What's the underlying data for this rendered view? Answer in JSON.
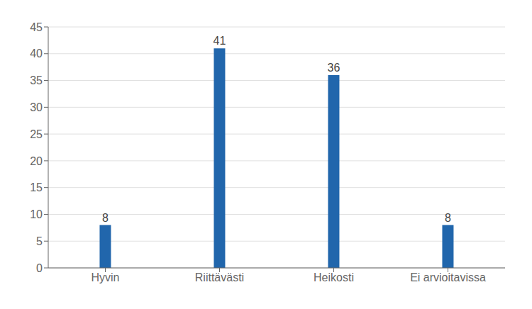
{
  "chart_data": {
    "type": "bar",
    "categories": [
      "Hyvin",
      "Riittävästi",
      "Heikosti",
      "Ei arvioitavissa"
    ],
    "values": [
      8,
      41,
      36,
      8
    ],
    "color": "#2166ac",
    "ylim": [
      0,
      45
    ],
    "yticks": [
      0,
      5,
      10,
      15,
      20,
      25,
      30,
      35,
      40,
      45
    ],
    "grid": true,
    "data_labels": true
  }
}
